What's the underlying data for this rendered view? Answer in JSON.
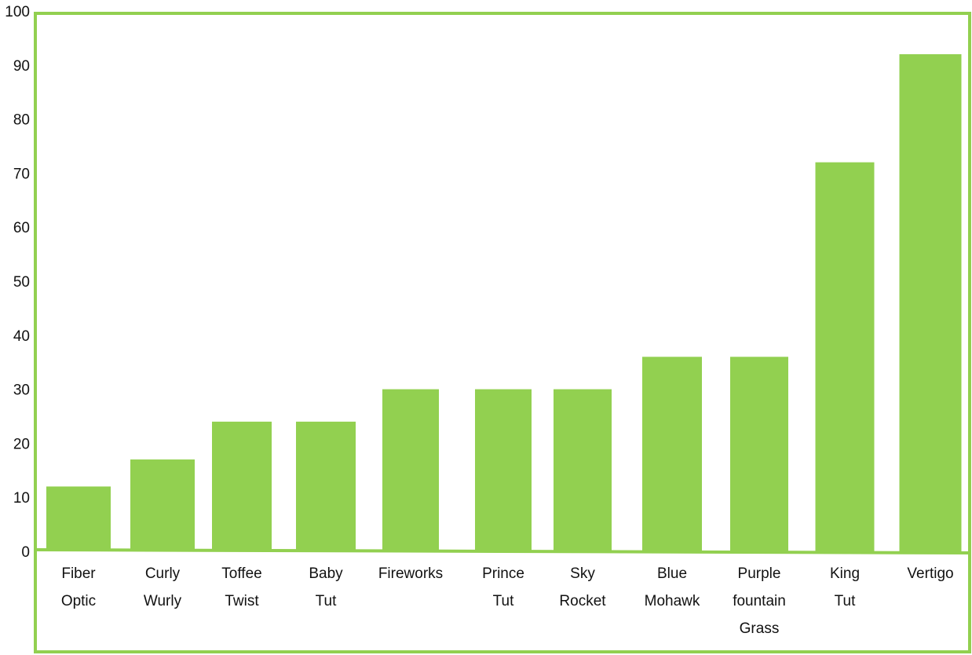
{
  "chart_data": {
    "type": "bar",
    "categories": [
      [
        "Fiber",
        "Optic"
      ],
      [
        "Curly",
        "Wurly"
      ],
      [
        "Toffee",
        "Twist"
      ],
      [
        "Baby",
        "Tut"
      ],
      [
        "Fireworks"
      ],
      [
        "Prince",
        "Tut"
      ],
      [
        "Sky",
        "Rocket"
      ],
      [
        "Blue",
        "Mohawk"
      ],
      [
        "Purple",
        "fountain",
        "Grass"
      ],
      [
        "King",
        "Tut"
      ],
      [
        "Vertigo"
      ]
    ],
    "values": [
      12,
      17,
      24,
      24,
      30,
      30,
      30,
      36,
      36,
      72,
      92
    ],
    "ylim": [
      0,
      100
    ],
    "yticks": [
      0,
      10,
      20,
      30,
      40,
      50,
      60,
      70,
      80,
      90,
      100
    ],
    "title": "",
    "xlabel": "",
    "ylabel": "",
    "grid": false,
    "legend": "none",
    "colors": {
      "bar": "#92d050",
      "frame": "#92d050",
      "text": "#111111"
    }
  }
}
